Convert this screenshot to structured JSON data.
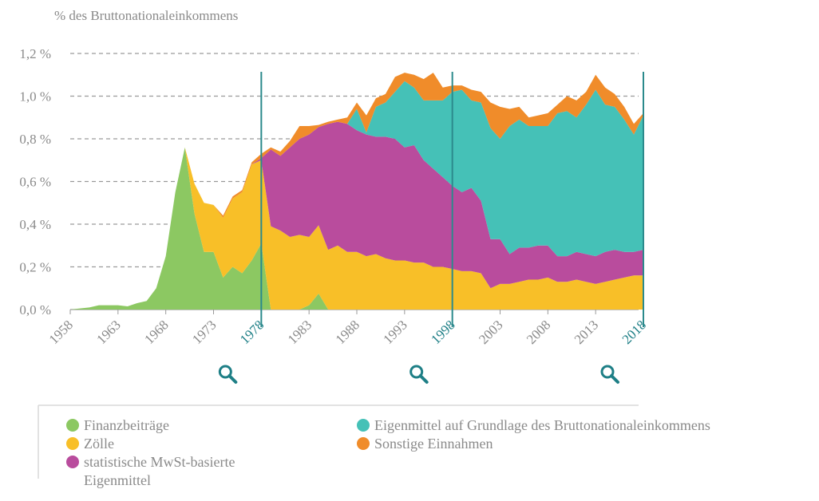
{
  "chart_data": {
    "type": "stacked_area",
    "y_axis_label": "% des Bruttonationaleinkommens",
    "x": [
      1958,
      1959,
      1960,
      1961,
      1962,
      1963,
      1964,
      1965,
      1966,
      1967,
      1968,
      1969,
      1970,
      1971,
      1972,
      1973,
      1974,
      1975,
      1976,
      1977,
      1978,
      1979,
      1980,
      1981,
      1982,
      1983,
      1984,
      1985,
      1986,
      1987,
      1988,
      1989,
      1990,
      1991,
      1992,
      1993,
      1994,
      1995,
      1996,
      1997,
      1998,
      1999,
      2000,
      2001,
      2002,
      2003,
      2004,
      2005,
      2006,
      2007,
      2008,
      2009,
      2010,
      2011,
      2012,
      2013,
      2014,
      2015,
      2016,
      2017,
      2018
    ],
    "series": [
      {
        "name": "Finanzbeiträge",
        "color": "#8cc862",
        "values": [
          0,
          0.005,
          0.01,
          0.02,
          0.02,
          0.02,
          0.015,
          0.03,
          0.04,
          0.1,
          0.25,
          0.55,
          0.76,
          0.45,
          0.27,
          0.27,
          0.15,
          0.2,
          0.17,
          0.23,
          0.31,
          0,
          0,
          0,
          0,
          0.02,
          0.075,
          0,
          0,
          0,
          0,
          0,
          0,
          0,
          0,
          0,
          0,
          0,
          0,
          0,
          0,
          0,
          0,
          0,
          0,
          0,
          0,
          0,
          0,
          0,
          0,
          0,
          0,
          0,
          0,
          0,
          0,
          0,
          0,
          0,
          0
        ]
      },
      {
        "name": "Zölle",
        "color": "#f8bf28",
        "values": [
          0,
          0,
          0,
          0,
          0,
          0,
          0,
          0,
          0,
          0,
          0,
          0,
          0,
          0.14,
          0.23,
          0.22,
          0.28,
          0.32,
          0.38,
          0.45,
          0.39,
          0.39,
          0.37,
          0.34,
          0.35,
          0.32,
          0.32,
          0.28,
          0.3,
          0.27,
          0.27,
          0.25,
          0.26,
          0.24,
          0.23,
          0.23,
          0.22,
          0.22,
          0.2,
          0.2,
          0.19,
          0.18,
          0.18,
          0.17,
          0.1,
          0.12,
          0.12,
          0.13,
          0.14,
          0.14,
          0.15,
          0.13,
          0.13,
          0.14,
          0.13,
          0.12,
          0.13,
          0.14,
          0.15,
          0.16,
          0.16
        ]
      },
      {
        "name": "statistische MwSt-basierte Eigenmittel",
        "color": "#b94c9d",
        "values": [
          0,
          0,
          0,
          0,
          0,
          0,
          0,
          0,
          0,
          0,
          0,
          0,
          0,
          0,
          0,
          0,
          0,
          0,
          0,
          0,
          0.01,
          0.36,
          0.35,
          0.42,
          0.45,
          0.48,
          0.46,
          0.59,
          0.58,
          0.6,
          0.57,
          0.57,
          0.55,
          0.57,
          0.57,
          0.53,
          0.55,
          0.48,
          0.46,
          0.42,
          0.39,
          0.37,
          0.39,
          0.34,
          0.23,
          0.21,
          0.14,
          0.16,
          0.15,
          0.16,
          0.15,
          0.12,
          0.12,
          0.13,
          0.13,
          0.13,
          0.14,
          0.14,
          0.12,
          0.11,
          0.12
        ]
      },
      {
        "name": "Eigenmittel auf Grundlage des Bruttonationaleinkommens",
        "color": "#45c1b7",
        "values": [
          0,
          0,
          0,
          0,
          0,
          0,
          0,
          0,
          0,
          0,
          0,
          0,
          0,
          0,
          0,
          0,
          0,
          0,
          0,
          0,
          0,
          0,
          0,
          0,
          0,
          0,
          0,
          0,
          0,
          0,
          0.1,
          0.01,
          0.14,
          0.16,
          0.22,
          0.31,
          0.27,
          0.28,
          0.32,
          0.36,
          0.44,
          0.48,
          0.41,
          0.46,
          0.52,
          0.47,
          0.6,
          0.6,
          0.57,
          0.56,
          0.56,
          0.67,
          0.68,
          0.63,
          0.7,
          0.78,
          0.69,
          0.67,
          0.62,
          0.55,
          0.63
        ]
      },
      {
        "name": "Sonstige Einnahmen",
        "color": "#f08c2a",
        "values": [
          0,
          0,
          0,
          0,
          0,
          0,
          0,
          0,
          0,
          0,
          0,
          0,
          0,
          0,
          0,
          0,
          0.01,
          0.01,
          0.01,
          0.01,
          0.02,
          0.01,
          0.02,
          0.03,
          0.06,
          0.04,
          0.01,
          0.01,
          0.01,
          0.03,
          0.03,
          0.08,
          0.04,
          0.04,
          0.07,
          0.04,
          0.06,
          0.1,
          0.13,
          0.06,
          0.03,
          0.02,
          0.05,
          0.05,
          0.12,
          0.15,
          0.08,
          0.06,
          0.04,
          0.05,
          0.06,
          0.04,
          0.07,
          0.08,
          0.06,
          0.07,
          0.08,
          0.06,
          0.06,
          0.05,
          0.01
        ]
      }
    ],
    "xlim": [
      1958,
      2018
    ],
    "xticks": [
      1958,
      1963,
      1968,
      1973,
      1978,
      1983,
      1988,
      1993,
      1998,
      2003,
      2008,
      2013,
      2018
    ],
    "highlight_years": [
      1978,
      1998,
      2018
    ],
    "ylim": [
      0,
      1.2
    ],
    "yticks": [
      {
        "value": 0,
        "label": "0,0 %"
      },
      {
        "value": 0.2,
        "label": "0,2 %"
      },
      {
        "value": 0.4,
        "label": "0,4 %"
      },
      {
        "value": 0.6,
        "label": "0,6 %"
      },
      {
        "value": 0.8,
        "label": "0,8 %"
      },
      {
        "value": 1.0,
        "label": "1,0 %"
      },
      {
        "value": 1.2,
        "label": "1,2 %"
      }
    ],
    "grid": true
  }
}
